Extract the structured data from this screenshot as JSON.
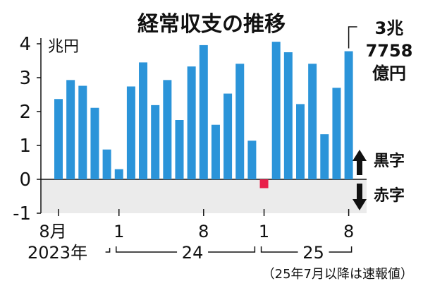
{
  "chart_data": {
    "type": "bar",
    "title": "経常収支の推移",
    "unit_label": "兆円",
    "ylim": [
      -1,
      4
    ],
    "yticks": [
      -1,
      0,
      1,
      2,
      3,
      4
    ],
    "ytick_labels": [
      "-1",
      "0",
      "1",
      "2",
      "3",
      "4"
    ],
    "categories": [
      "2023-08",
      "2023-09",
      "2023-10",
      "2023-11",
      "2023-12",
      "2024-01",
      "2024-02",
      "2024-03",
      "2024-04",
      "2024-05",
      "2024-06",
      "2024-07",
      "2024-08",
      "2024-09",
      "2024-10",
      "2024-11",
      "2024-12",
      "2025-01",
      "2025-02",
      "2025-03",
      "2025-04",
      "2025-05",
      "2025-06",
      "2025-07",
      "2025-08"
    ],
    "values": [
      2.37,
      2.93,
      2.76,
      2.11,
      0.88,
      0.3,
      2.74,
      3.45,
      2.19,
      2.93,
      1.75,
      3.33,
      3.96,
      1.61,
      2.53,
      3.41,
      1.14,
      -0.26,
      4.06,
      3.75,
      2.22,
      3.41,
      1.33,
      2.7,
      3.78
    ],
    "colors": {
      "positive": "#2b94d9",
      "negative": "#e8204a",
      "negative_zone": "#ebebeb"
    },
    "x_month_labels": [
      {
        "label": "8月",
        "index": 0
      },
      {
        "label": "1",
        "index": 5
      },
      {
        "label": "8",
        "index": 12
      },
      {
        "label": "1",
        "index": 17
      },
      {
        "label": "8",
        "index": 24
      }
    ],
    "year_labels": [
      {
        "label": "2023年",
        "from": 0,
        "to": 4
      },
      {
        "label": "24",
        "from": 5,
        "to": 16
      },
      {
        "label": "25",
        "from": 17,
        "to": 24
      }
    ],
    "last_value_annotation": [
      "3兆",
      "7758",
      "億円"
    ],
    "legend_surplus": "黒字",
    "legend_deficit": "赤字",
    "footnote": "（25年7月以降は速報値）"
  }
}
